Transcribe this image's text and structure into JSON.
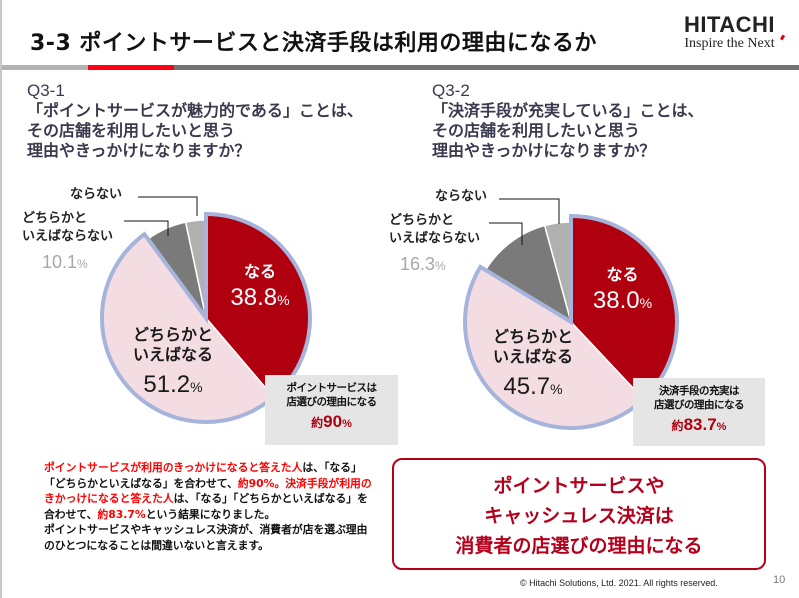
{
  "header": {
    "title": "3-3 ポイントサービスと決済手段は利用の理由になるか",
    "logo_main": "HITACHI",
    "logo_sub": "Inspire the Next"
  },
  "questions": [
    {
      "id": "Q3-1",
      "lines": [
        "「ポイントサービスが魅力的である」ことは、",
        "その店舗を利用したいと思う",
        "理由やきっかけになりますか？"
      ]
    },
    {
      "id": "Q3-2",
      "lines": [
        "「決済手段が充実している」ことは、",
        "その店舗を利用したいと思う",
        "理由やきっかけになりますか？"
      ]
    }
  ],
  "chart_data": [
    {
      "type": "pie",
      "title": "Q3-1",
      "slices": [
        {
          "label": "なる",
          "value": 38.8
        },
        {
          "label": "どちらかといえばなる",
          "value": 51.2
        },
        {
          "label": "どちらかといえばならない + ならない",
          "value": 10.1
        }
      ],
      "outer_labels": {
        "naranai": "ならない",
        "dochira_naranai": [
          "どちらかと",
          "いえばならない"
        ],
        "negative_total": "10.1",
        "negative_total_unit": "%"
      },
      "inner_labels": {
        "naru_title": "なる",
        "naru_value": "38.8",
        "dochira_title": [
          "どちらかと",
          "いえばなる"
        ],
        "dochira_value": "51.2",
        "unit": "%"
      },
      "summary": {
        "lines": [
          "ポイントサービスは",
          "店選びの理由になる"
        ],
        "prefix": "約",
        "value": "90",
        "unit": "%"
      }
    },
    {
      "type": "pie",
      "title": "Q3-2",
      "slices": [
        {
          "label": "なる",
          "value": 38.0
        },
        {
          "label": "どちらかといえばなる",
          "value": 45.7
        },
        {
          "label": "どちらかといえばならない + ならない",
          "value": 16.3
        }
      ],
      "outer_labels": {
        "naranai": "ならない",
        "dochira_naranai": [
          "どちらかと",
          "いえばならない"
        ],
        "negative_total": "16.3",
        "negative_total_unit": "%"
      },
      "inner_labels": {
        "naru_title": "なる",
        "naru_value": "38.0",
        "dochira_title": [
          "どちらかと",
          "いえばなる"
        ],
        "dochira_value": "45.7",
        "unit": "%"
      },
      "summary": {
        "lines": [
          "決済手段の充実は",
          "店選びの理由になる"
        ],
        "prefix": "約",
        "value": "83.7",
        "unit": "%"
      }
    }
  ],
  "body_text": [
    {
      "text": "ポイントサービスが利用のきっかけになると答えた人",
      "red": true
    },
    {
      "text": "は、「なる」「どちらかといえばなる」を合わせて、",
      "red": false
    },
    {
      "text": "約90%。決済手段が利用のきかっけになると答えた人",
      "red": true
    },
    {
      "text": "は、「なる」「どちらかといえばなる」を合わせて、",
      "red": false
    },
    {
      "text": "約83.7%",
      "red": true
    },
    {
      "text": "という結果になりました。",
      "red": false
    },
    {
      "text": "ポイントサービスやキャッシュレス決済が、消費者が店を選ぶ理由のひとつになることは間違いないと言えます。",
      "red": false,
      "newline": true
    }
  ],
  "callout": {
    "lines": [
      "ポイントサービスや",
      "キャッシュレス決済は",
      "消費者の店選びの理由になる"
    ]
  },
  "footer": {
    "copyright": "© Hitachi Solutions, Ltd. 2021. All rights reserved.",
    "page_number": "10"
  },
  "colors": {
    "naru": "#b0000f",
    "dochira_naru": "#f4dde2",
    "dochira_naranai": "#7a7a7a",
    "naranai": "#b0b0b0",
    "highlight_border": "#a6b4dc",
    "accent_red": "#ff0000",
    "callout_red": "#b5001c"
  }
}
